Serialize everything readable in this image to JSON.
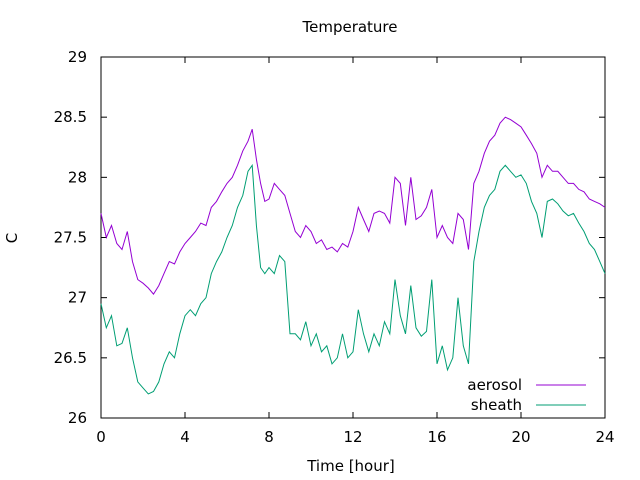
{
  "chart_data": {
    "type": "line",
    "title": "Temperature",
    "xlabel": "Time [hour]",
    "ylabel": "C",
    "xlim": [
      0,
      24
    ],
    "ylim": [
      26,
      29
    ],
    "x_ticks": [
      0,
      4,
      8,
      12,
      16,
      20,
      24
    ],
    "y_ticks": [
      26,
      26.5,
      27,
      27.5,
      28,
      28.5,
      29
    ],
    "x_tick_labels": [
      "0",
      "4",
      "8",
      "12",
      "16",
      "20",
      "24"
    ],
    "y_tick_labels": [
      "26",
      "26.5",
      "27",
      "27.5",
      "28",
      "28.5",
      "29"
    ],
    "grid": false,
    "legend_position": "bottom-right",
    "series": [
      {
        "name": "aerosol",
        "color": "#9400d3",
        "points": [
          [
            0,
            27.7
          ],
          [
            0.25,
            27.5
          ],
          [
            0.5,
            27.6
          ],
          [
            0.75,
            27.45
          ],
          [
            1,
            27.4
          ],
          [
            1.25,
            27.55
          ],
          [
            1.5,
            27.3
          ],
          [
            1.75,
            27.15
          ],
          [
            2,
            27.12
          ],
          [
            2.25,
            27.08
          ],
          [
            2.5,
            27.03
          ],
          [
            2.75,
            27.1
          ],
          [
            3,
            27.2
          ],
          [
            3.25,
            27.3
          ],
          [
            3.5,
            27.28
          ],
          [
            3.75,
            27.38
          ],
          [
            4,
            27.45
          ],
          [
            4.25,
            27.5
          ],
          [
            4.5,
            27.55
          ],
          [
            4.75,
            27.62
          ],
          [
            5,
            27.6
          ],
          [
            5.25,
            27.75
          ],
          [
            5.5,
            27.8
          ],
          [
            5.75,
            27.88
          ],
          [
            6,
            27.95
          ],
          [
            6.25,
            28.0
          ],
          [
            6.5,
            28.1
          ],
          [
            6.75,
            28.22
          ],
          [
            7,
            28.3
          ],
          [
            7.2,
            28.4
          ],
          [
            7.4,
            28.15
          ],
          [
            7.6,
            27.95
          ],
          [
            7.8,
            27.8
          ],
          [
            8,
            27.82
          ],
          [
            8.25,
            27.95
          ],
          [
            8.5,
            27.9
          ],
          [
            8.75,
            27.85
          ],
          [
            9,
            27.7
          ],
          [
            9.25,
            27.55
          ],
          [
            9.5,
            27.5
          ],
          [
            9.75,
            27.6
          ],
          [
            10,
            27.55
          ],
          [
            10.25,
            27.45
          ],
          [
            10.5,
            27.48
          ],
          [
            10.75,
            27.4
          ],
          [
            11,
            27.42
          ],
          [
            11.25,
            27.38
          ],
          [
            11.5,
            27.45
          ],
          [
            11.75,
            27.42
          ],
          [
            12,
            27.55
          ],
          [
            12.25,
            27.75
          ],
          [
            12.5,
            27.65
          ],
          [
            12.75,
            27.55
          ],
          [
            13,
            27.7
          ],
          [
            13.25,
            27.72
          ],
          [
            13.5,
            27.7
          ],
          [
            13.75,
            27.62
          ],
          [
            14,
            28.0
          ],
          [
            14.25,
            27.95
          ],
          [
            14.5,
            27.6
          ],
          [
            14.75,
            28.0
          ],
          [
            15,
            27.65
          ],
          [
            15.25,
            27.68
          ],
          [
            15.5,
            27.75
          ],
          [
            15.75,
            27.9
          ],
          [
            16,
            27.5
          ],
          [
            16.25,
            27.6
          ],
          [
            16.5,
            27.5
          ],
          [
            16.75,
            27.45
          ],
          [
            17,
            27.7
          ],
          [
            17.25,
            27.65
          ],
          [
            17.5,
            27.4
          ],
          [
            17.75,
            27.95
          ],
          [
            18,
            28.05
          ],
          [
            18.25,
            28.2
          ],
          [
            18.5,
            28.3
          ],
          [
            18.75,
            28.35
          ],
          [
            19,
            28.45
          ],
          [
            19.25,
            28.5
          ],
          [
            19.5,
            28.48
          ],
          [
            19.75,
            28.45
          ],
          [
            20,
            28.42
          ],
          [
            20.25,
            28.35
          ],
          [
            20.5,
            28.28
          ],
          [
            20.75,
            28.2
          ],
          [
            21,
            28.0
          ],
          [
            21.25,
            28.1
          ],
          [
            21.5,
            28.05
          ],
          [
            21.75,
            28.05
          ],
          [
            22,
            28.0
          ],
          [
            22.25,
            27.95
          ],
          [
            22.5,
            27.95
          ],
          [
            22.75,
            27.9
          ],
          [
            23,
            27.88
          ],
          [
            23.25,
            27.82
          ],
          [
            23.5,
            27.8
          ],
          [
            23.75,
            27.78
          ],
          [
            24,
            27.75
          ]
        ]
      },
      {
        "name": "sheath",
        "color": "#009e73",
        "points": [
          [
            0,
            26.95
          ],
          [
            0.25,
            26.75
          ],
          [
            0.5,
            26.85
          ],
          [
            0.75,
            26.6
          ],
          [
            1,
            26.62
          ],
          [
            1.25,
            26.75
          ],
          [
            1.5,
            26.5
          ],
          [
            1.75,
            26.3
          ],
          [
            2,
            26.25
          ],
          [
            2.25,
            26.2
          ],
          [
            2.5,
            26.22
          ],
          [
            2.75,
            26.3
          ],
          [
            3,
            26.45
          ],
          [
            3.25,
            26.55
          ],
          [
            3.5,
            26.5
          ],
          [
            3.75,
            26.7
          ],
          [
            4,
            26.85
          ],
          [
            4.25,
            26.9
          ],
          [
            4.5,
            26.85
          ],
          [
            4.75,
            26.95
          ],
          [
            5,
            27.0
          ],
          [
            5.25,
            27.2
          ],
          [
            5.5,
            27.3
          ],
          [
            5.75,
            27.38
          ],
          [
            6,
            27.5
          ],
          [
            6.25,
            27.6
          ],
          [
            6.5,
            27.75
          ],
          [
            6.75,
            27.85
          ],
          [
            7,
            28.05
          ],
          [
            7.2,
            28.1
          ],
          [
            7.4,
            27.6
          ],
          [
            7.6,
            27.25
          ],
          [
            7.8,
            27.2
          ],
          [
            8,
            27.25
          ],
          [
            8.25,
            27.2
          ],
          [
            8.5,
            27.35
          ],
          [
            8.75,
            27.3
          ],
          [
            9,
            26.7
          ],
          [
            9.25,
            26.7
          ],
          [
            9.5,
            26.65
          ],
          [
            9.75,
            26.8
          ],
          [
            10,
            26.6
          ],
          [
            10.25,
            26.7
          ],
          [
            10.5,
            26.55
          ],
          [
            10.75,
            26.6
          ],
          [
            11,
            26.45
          ],
          [
            11.25,
            26.5
          ],
          [
            11.5,
            26.7
          ],
          [
            11.75,
            26.5
          ],
          [
            12,
            26.55
          ],
          [
            12.25,
            26.9
          ],
          [
            12.5,
            26.7
          ],
          [
            12.75,
            26.55
          ],
          [
            13,
            26.7
          ],
          [
            13.25,
            26.6
          ],
          [
            13.5,
            26.8
          ],
          [
            13.75,
            26.7
          ],
          [
            14,
            27.15
          ],
          [
            14.25,
            26.85
          ],
          [
            14.5,
            26.7
          ],
          [
            14.75,
            27.1
          ],
          [
            15,
            26.75
          ],
          [
            15.25,
            26.68
          ],
          [
            15.5,
            26.72
          ],
          [
            15.75,
            27.15
          ],
          [
            16,
            26.45
          ],
          [
            16.25,
            26.6
          ],
          [
            16.5,
            26.4
          ],
          [
            16.75,
            26.5
          ],
          [
            17,
            27.0
          ],
          [
            17.25,
            26.6
          ],
          [
            17.5,
            26.45
          ],
          [
            17.75,
            27.3
          ],
          [
            18,
            27.55
          ],
          [
            18.25,
            27.75
          ],
          [
            18.5,
            27.85
          ],
          [
            18.75,
            27.9
          ],
          [
            19,
            28.05
          ],
          [
            19.25,
            28.1
          ],
          [
            19.5,
            28.05
          ],
          [
            19.75,
            28.0
          ],
          [
            20,
            28.02
          ],
          [
            20.25,
            27.95
          ],
          [
            20.5,
            27.8
          ],
          [
            20.75,
            27.7
          ],
          [
            21,
            27.5
          ],
          [
            21.25,
            27.8
          ],
          [
            21.5,
            27.82
          ],
          [
            21.75,
            27.78
          ],
          [
            22,
            27.72
          ],
          [
            22.25,
            27.68
          ],
          [
            22.5,
            27.7
          ],
          [
            22.75,
            27.62
          ],
          [
            23,
            27.55
          ],
          [
            23.25,
            27.45
          ],
          [
            23.5,
            27.4
          ],
          [
            23.75,
            27.3
          ],
          [
            24,
            27.2
          ]
        ]
      }
    ]
  }
}
